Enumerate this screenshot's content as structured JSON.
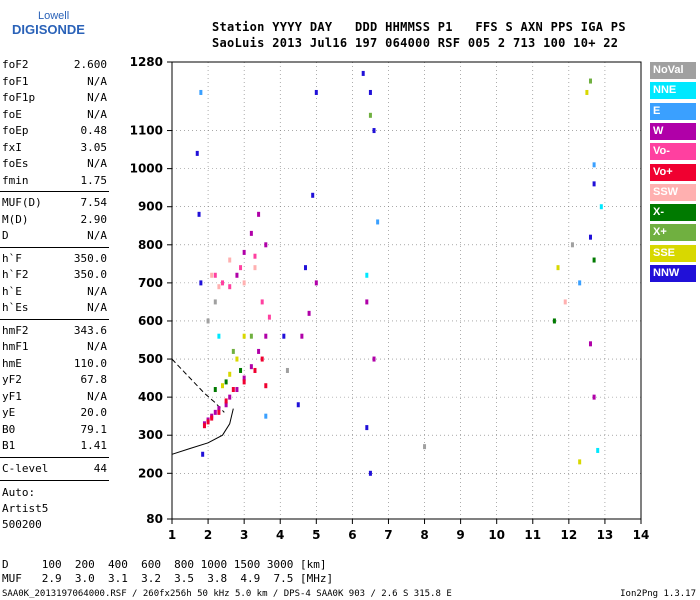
{
  "logo": {
    "line1": "Lowell",
    "line2": "DIGISONDE"
  },
  "header": {
    "row1": "Station YYYY DAY   DDD HHMMSS P1   FFS S AXN PPS IGA PS",
    "row2": "SaoLuis 2013 Jul16 197 064000 RSF 005 2 713 100 10+ 22"
  },
  "params_group1": [
    {
      "key": "foF2",
      "value": "2.600"
    },
    {
      "key": "foF1",
      "value": "N/A"
    },
    {
      "key": "foF1p",
      "value": "N/A"
    },
    {
      "key": "foE",
      "value": "N/A"
    },
    {
      "key": "foEp",
      "value": "0.48"
    },
    {
      "key": "fxI",
      "value": "3.05"
    },
    {
      "key": "foEs",
      "value": "N/A"
    },
    {
      "key": "fmin",
      "value": "1.75"
    }
  ],
  "params_group2": [
    {
      "key": "MUF(D)",
      "value": "7.54"
    },
    {
      "key": "M(D)",
      "value": "2.90"
    },
    {
      "key": "D",
      "value": "N/A"
    }
  ],
  "params_group3": [
    {
      "key": "h`F",
      "value": "350.0"
    },
    {
      "key": "h`F2",
      "value": "350.0"
    },
    {
      "key": "h`E",
      "value": "N/A"
    },
    {
      "key": "h`Es",
      "value": "N/A"
    }
  ],
  "params_group4": [
    {
      "key": "hmF2",
      "value": "343.6"
    },
    {
      "key": "hmF1",
      "value": "N/A"
    },
    {
      "key": "hmE",
      "value": "110.0"
    },
    {
      "key": "yF2",
      "value": "67.8"
    },
    {
      "key": "yF1",
      "value": "N/A"
    },
    {
      "key": "yE",
      "value": "20.0"
    },
    {
      "key": "B0",
      "value": "79.1"
    },
    {
      "key": "B1",
      "value": "1.41"
    }
  ],
  "params_group5": [
    {
      "key": "C-level",
      "value": "44"
    }
  ],
  "auto": {
    "line1": "Auto:",
    "line2": "Artist5",
    "line3": "500200"
  },
  "legend": [
    {
      "label": "NoVal",
      "color": "#a0a0a0"
    },
    {
      "label": "NNE",
      "color": "#00e8ff"
    },
    {
      "label": "E",
      "color": "#3aa0ff"
    },
    {
      "label": "W",
      "color": "#b000a8"
    },
    {
      "label": "Vo-",
      "color": "#ff40a0"
    },
    {
      "label": "Vo+",
      "color": "#f00030"
    },
    {
      "label": "SSW",
      "color": "#ffb0b0"
    },
    {
      "label": "X-",
      "color": "#007a00"
    },
    {
      "label": "X+",
      "color": "#70b040"
    },
    {
      "label": "SSE",
      "color": "#d8d800"
    },
    {
      "label": "NNW",
      "color": "#2010d8"
    }
  ],
  "muf_table": {
    "d_row": "D     100  200  400  600  800 1000 1500 3000 [km]",
    "muf_row": "MUF   2.9  3.0  3.1  3.2  3.5  3.8  4.9  7.5 [MHz]"
  },
  "footer": {
    "left": "SAA0K_2013197064000.RSF / 260fx256h 50 kHz 5.0 km / DPS-4 SAA0K 903 / 2.6 S 315.8 E",
    "right": "Ion2Png 1.3.17"
  },
  "chart_data": {
    "type": "scatter",
    "title": "",
    "xlabel": "",
    "ylabel": "",
    "xlim": [
      1,
      14
    ],
    "ylim": [
      80,
      1280
    ],
    "x_ticks": [
      1,
      2,
      3,
      4,
      5,
      6,
      7,
      8,
      9,
      10,
      11,
      12,
      13,
      14
    ],
    "y_ticks": [
      80,
      200,
      300,
      400,
      500,
      600,
      700,
      800,
      900,
      1000,
      1100,
      1280
    ],
    "grid": "dotted",
    "series": [
      {
        "name": "W",
        "color": "#b000a8",
        "points": [
          [
            1.9,
            330
          ],
          [
            2.0,
            340
          ],
          [
            2.1,
            350
          ],
          [
            2.2,
            360
          ],
          [
            2.3,
            370
          ],
          [
            2.5,
            380
          ],
          [
            2.6,
            400
          ],
          [
            2.8,
            420
          ],
          [
            3.0,
            450
          ],
          [
            3.2,
            480
          ],
          [
            3.4,
            520
          ],
          [
            3.6,
            560
          ],
          [
            2.8,
            720
          ],
          [
            3.0,
            780
          ],
          [
            3.2,
            830
          ],
          [
            3.4,
            880
          ],
          [
            3.6,
            800
          ],
          [
            4.6,
            560
          ],
          [
            4.8,
            620
          ],
          [
            5.0,
            700
          ],
          [
            6.4,
            650
          ],
          [
            6.6,
            500
          ],
          [
            12.6,
            540
          ],
          [
            12.7,
            400
          ]
        ]
      },
      {
        "name": "NNW",
        "color": "#2010d8",
        "points": [
          [
            1.7,
            1040
          ],
          [
            1.75,
            880
          ],
          [
            1.8,
            700
          ],
          [
            1.85,
            250
          ],
          [
            4.1,
            560
          ],
          [
            4.5,
            380
          ],
          [
            4.7,
            740
          ],
          [
            4.9,
            930
          ],
          [
            5.0,
            1200
          ],
          [
            6.3,
            1250
          ],
          [
            6.5,
            1200
          ],
          [
            6.6,
            1100
          ],
          [
            6.4,
            320
          ],
          [
            6.5,
            200
          ],
          [
            12.7,
            960
          ],
          [
            12.6,
            820
          ]
        ]
      },
      {
        "name": "Vo+",
        "color": "#f00030",
        "points": [
          [
            1.9,
            325
          ],
          [
            2.0,
            335
          ],
          [
            2.1,
            345
          ],
          [
            2.3,
            360
          ],
          [
            2.5,
            390
          ],
          [
            2.7,
            420
          ],
          [
            3.0,
            440
          ],
          [
            3.3,
            470
          ],
          [
            3.5,
            500
          ],
          [
            3.6,
            430
          ]
        ]
      },
      {
        "name": "Vo-",
        "color": "#ff40a0",
        "points": [
          [
            2.4,
            700
          ],
          [
            2.6,
            690
          ],
          [
            2.9,
            740
          ],
          [
            3.3,
            770
          ],
          [
            3.5,
            650
          ],
          [
            3.7,
            610
          ],
          [
            2.2,
            720
          ]
        ]
      },
      {
        "name": "SSE",
        "color": "#d8d800",
        "points": [
          [
            2.4,
            430
          ],
          [
            2.6,
            460
          ],
          [
            2.8,
            500
          ],
          [
            3.0,
            560
          ],
          [
            11.7,
            740
          ],
          [
            12.3,
            230
          ],
          [
            12.5,
            1200
          ]
        ]
      },
      {
        "name": "X-",
        "color": "#007a00",
        "points": [
          [
            2.2,
            420
          ],
          [
            2.5,
            440
          ],
          [
            2.9,
            470
          ],
          [
            11.6,
            600
          ],
          [
            12.7,
            760
          ]
        ]
      },
      {
        "name": "X+",
        "color": "#70b040",
        "points": [
          [
            2.7,
            520
          ],
          [
            3.2,
            560
          ],
          [
            6.5,
            1140
          ],
          [
            12.6,
            1230
          ]
        ]
      },
      {
        "name": "NNE",
        "color": "#00e8ff",
        "points": [
          [
            2.3,
            560
          ],
          [
            6.4,
            720
          ],
          [
            12.8,
            260
          ],
          [
            12.9,
            900
          ]
        ]
      },
      {
        "name": "E",
        "color": "#3aa0ff",
        "points": [
          [
            1.8,
            1200
          ],
          [
            3.6,
            350
          ],
          [
            6.7,
            860
          ],
          [
            12.3,
            700
          ],
          [
            12.7,
            1010
          ]
        ]
      },
      {
        "name": "SSW",
        "color": "#ffb0b0",
        "points": [
          [
            2.1,
            720
          ],
          [
            2.3,
            690
          ],
          [
            2.6,
            760
          ],
          [
            3.0,
            700
          ],
          [
            3.3,
            740
          ],
          [
            11.9,
            650
          ]
        ]
      },
      {
        "name": "NoVal",
        "color": "#a0a0a0",
        "points": [
          [
            2.0,
            600
          ],
          [
            2.2,
            650
          ],
          [
            4.2,
            470
          ],
          [
            8.0,
            270
          ],
          [
            12.1,
            800
          ]
        ]
      }
    ],
    "traces": [
      {
        "name": "trace-solid",
        "style": "solid",
        "points": [
          [
            1.0,
            250
          ],
          [
            1.5,
            265
          ],
          [
            2.0,
            280
          ],
          [
            2.4,
            300
          ],
          [
            2.6,
            330
          ],
          [
            2.7,
            370
          ]
        ]
      },
      {
        "name": "trace-dashed",
        "style": "dashed",
        "points": [
          [
            1.0,
            500
          ],
          [
            1.3,
            470
          ],
          [
            1.6,
            440
          ],
          [
            1.9,
            410
          ],
          [
            2.2,
            385
          ],
          [
            2.45,
            360
          ]
        ]
      }
    ]
  }
}
